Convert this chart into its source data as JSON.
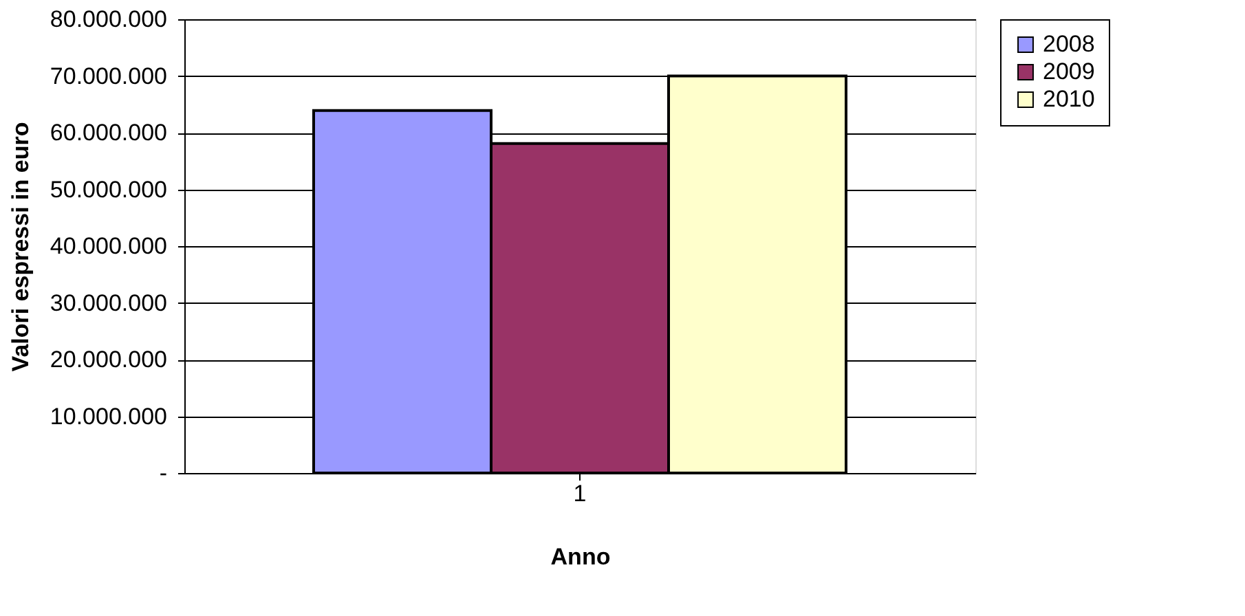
{
  "chart_data": {
    "type": "bar",
    "xlabel": "Anno",
    "ylabel": "Valori espressi in euro",
    "categories": [
      "1"
    ],
    "series": [
      {
        "name": "2008",
        "color": "#9999ff",
        "values": [
          63900000
        ]
      },
      {
        "name": "2009",
        "color": "#993366",
        "values": [
          58100000
        ]
      },
      {
        "name": "2010",
        "color": "#ffffcc",
        "values": [
          70000000
        ]
      }
    ],
    "ylim": [
      0,
      80000000
    ],
    "yticks": [
      {
        "value": 0,
        "label": "-"
      },
      {
        "value": 10000000,
        "label": "10.000.000"
      },
      {
        "value": 20000000,
        "label": "20.000.000"
      },
      {
        "value": 30000000,
        "label": "30.000.000"
      },
      {
        "value": 40000000,
        "label": "40.000.000"
      },
      {
        "value": 50000000,
        "label": "50.000.000"
      },
      {
        "value": 60000000,
        "label": "60.000.000"
      },
      {
        "value": 70000000,
        "label": "70.000.000"
      },
      {
        "value": 80000000,
        "label": "80.000.000"
      }
    ],
    "grid": "y",
    "legend": "right"
  }
}
